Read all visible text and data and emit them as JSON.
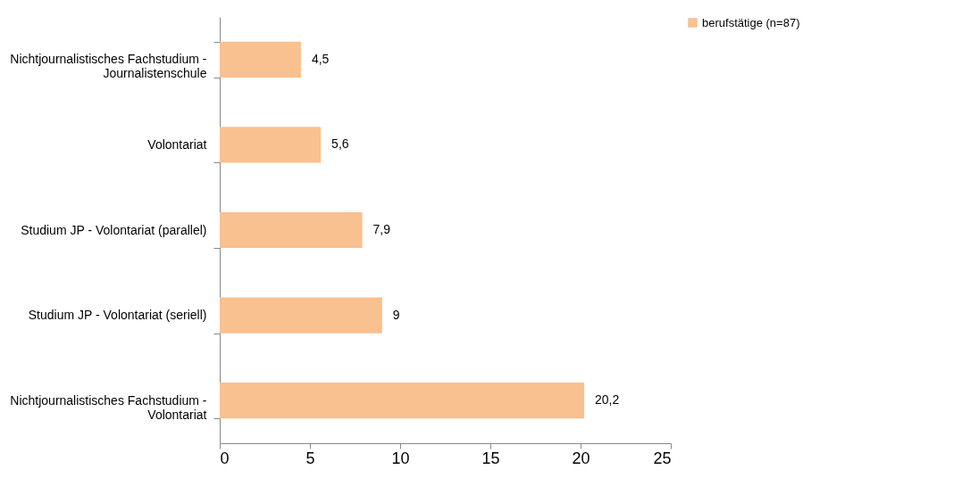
{
  "chart_data": {
    "type": "bar",
    "orientation": "horizontal",
    "categories": [
      "Nichtjournalistisches Fachstudium - Journalistenschule",
      "Volontariat",
      "Studium JP - Volontariat (parallel)",
      "Studium JP - Volontariat (seriell)",
      "Nichtjournalistisches Fachstudium - Volontariat"
    ],
    "series": [
      {
        "name": "berufstätige (n=87)",
        "color": "#f9c090",
        "values": [
          4.5,
          5.6,
          7.9,
          9,
          20.2
        ],
        "value_labels": [
          "4,5",
          "5,6",
          "7,9",
          "9",
          "20,2"
        ]
      }
    ],
    "xlim": [
      0,
      25
    ],
    "xticks": [
      0,
      5,
      10,
      15,
      20,
      25
    ],
    "grid": false,
    "legend": "right"
  }
}
